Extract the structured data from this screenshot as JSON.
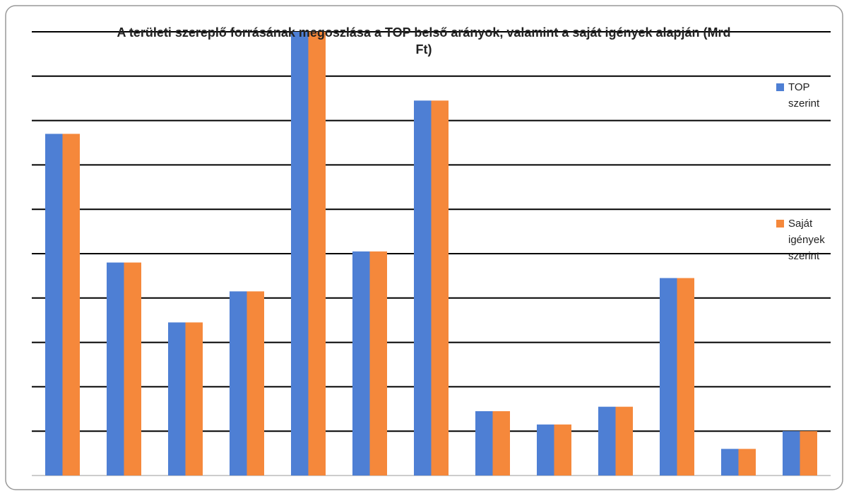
{
  "chart_data": {
    "type": "bar",
    "title": "A területi szereplő forrásának megoszlása a TOP belső arányok, valamint a saját igények alapján (Mrd Ft)",
    "categories": [
      null,
      null,
      null,
      null,
      null,
      null,
      null,
      null,
      null,
      null,
      null,
      null,
      null
    ],
    "series": [
      {
        "name": "TOP szerint",
        "color": "#4e7fd4",
        "values": [
          7.7,
          4.8,
          3.45,
          4.15,
          10,
          5.05,
          8.45,
          1.45,
          1.15,
          1.55,
          4.45,
          0.6,
          1.0
        ]
      },
      {
        "name": "Saját igények szerint",
        "color": "#f5883b",
        "values": [
          7.7,
          4.8,
          3.45,
          4.15,
          10,
          5.05,
          8.45,
          1.45,
          1.15,
          1.55,
          4.45,
          0.6,
          1.0
        ]
      }
    ],
    "ylim": [
      0,
      10
    ],
    "yticks": [
      1,
      2,
      3,
      4,
      5,
      6,
      7,
      8,
      9,
      10
    ],
    "grid": true
  }
}
